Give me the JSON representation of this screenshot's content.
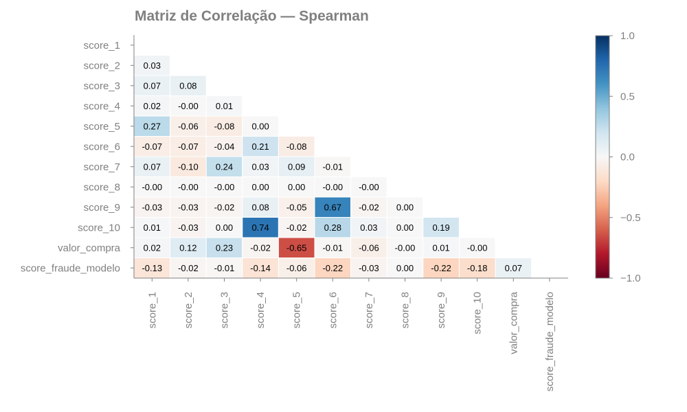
{
  "chart_data": {
    "type": "heatmap",
    "title": "Matriz de Correlação — Spearman",
    "variables": [
      "score_1",
      "score_2",
      "score_3",
      "score_4",
      "score_5",
      "score_6",
      "score_7",
      "score_8",
      "score_9",
      "score_10",
      "valor_compra",
      "score_fraude_modelo"
    ],
    "mask": "upper-triangle-and-diagonal",
    "matrix": [
      [
        null,
        null,
        null,
        null,
        null,
        null,
        null,
        null,
        null,
        null,
        null,
        null
      ],
      [
        0.03,
        null,
        null,
        null,
        null,
        null,
        null,
        null,
        null,
        null,
        null,
        null
      ],
      [
        0.07,
        0.08,
        null,
        null,
        null,
        null,
        null,
        null,
        null,
        null,
        null,
        null
      ],
      [
        0.02,
        -0.0,
        0.01,
        null,
        null,
        null,
        null,
        null,
        null,
        null,
        null,
        null
      ],
      [
        0.27,
        -0.06,
        -0.08,
        0.0,
        null,
        null,
        null,
        null,
        null,
        null,
        null,
        null
      ],
      [
        -0.07,
        -0.07,
        -0.04,
        0.21,
        -0.08,
        null,
        null,
        null,
        null,
        null,
        null,
        null
      ],
      [
        0.07,
        -0.1,
        0.24,
        0.03,
        0.09,
        -0.01,
        null,
        null,
        null,
        null,
        null,
        null
      ],
      [
        -0.0,
        -0.0,
        -0.0,
        0.0,
        0.0,
        -0.0,
        -0.0,
        null,
        null,
        null,
        null,
        null
      ],
      [
        -0.03,
        -0.03,
        -0.02,
        0.08,
        -0.05,
        0.67,
        -0.02,
        0.0,
        null,
        null,
        null,
        null
      ],
      [
        0.01,
        -0.03,
        0.0,
        0.74,
        -0.02,
        0.28,
        0.03,
        0.0,
        0.19,
        null,
        null,
        null
      ],
      [
        0.02,
        0.12,
        0.23,
        -0.02,
        -0.65,
        -0.01,
        -0.06,
        -0.0,
        0.01,
        -0.0,
        null,
        null
      ],
      [
        -0.13,
        -0.02,
        -0.01,
        -0.14,
        -0.06,
        -0.22,
        -0.03,
        0.0,
        -0.22,
        -0.18,
        0.07,
        null
      ]
    ],
    "labels": [
      [
        null,
        null,
        null,
        null,
        null,
        null,
        null,
        null,
        null,
        null,
        null,
        null
      ],
      [
        "0.03",
        null,
        null,
        null,
        null,
        null,
        null,
        null,
        null,
        null,
        null,
        null
      ],
      [
        "0.07",
        "0.08",
        null,
        null,
        null,
        null,
        null,
        null,
        null,
        null,
        null,
        null
      ],
      [
        "0.02",
        "-0.00",
        "0.01",
        null,
        null,
        null,
        null,
        null,
        null,
        null,
        null,
        null
      ],
      [
        "0.27",
        "-0.06",
        "-0.08",
        "0.00",
        null,
        null,
        null,
        null,
        null,
        null,
        null,
        null
      ],
      [
        "-0.07",
        "-0.07",
        "-0.04",
        "0.21",
        "-0.08",
        null,
        null,
        null,
        null,
        null,
        null,
        null
      ],
      [
        "0.07",
        "-0.10",
        "0.24",
        "0.03",
        "0.09",
        "-0.01",
        null,
        null,
        null,
        null,
        null,
        null
      ],
      [
        "-0.00",
        "-0.00",
        "-0.00",
        "0.00",
        "0.00",
        "-0.00",
        "-0.00",
        null,
        null,
        null,
        null,
        null
      ],
      [
        "-0.03",
        "-0.03",
        "-0.02",
        "0.08",
        "-0.05",
        "0.67",
        "-0.02",
        "0.00",
        null,
        null,
        null,
        null
      ],
      [
        "0.01",
        "-0.03",
        "0.00",
        "0.74",
        "-0.02",
        "0.28",
        "0.03",
        "0.00",
        "0.19",
        null,
        null,
        null
      ],
      [
        "0.02",
        "0.12",
        "0.23",
        "-0.02",
        "-0.65",
        "-0.01",
        "-0.06",
        "-0.00",
        "0.01",
        "-0.00",
        null,
        null
      ],
      [
        "-0.13",
        "-0.02",
        "-0.01",
        "-0.14",
        "-0.06",
        "-0.22",
        "-0.03",
        "0.00",
        "-0.22",
        "-0.18",
        "0.07",
        null
      ]
    ],
    "colorbar": {
      "vmin": -1.0,
      "vmax": 1.0,
      "ticks": [
        1.0,
        0.5,
        0.0,
        -0.5,
        -1.0
      ],
      "tick_labels": [
        "1.0",
        "0.5",
        "0.0",
        "−0.5",
        "−1.0"
      ],
      "colormap": "RdBu"
    },
    "colors": {
      "text": "#808080",
      "cell_text": "#000000"
    }
  }
}
